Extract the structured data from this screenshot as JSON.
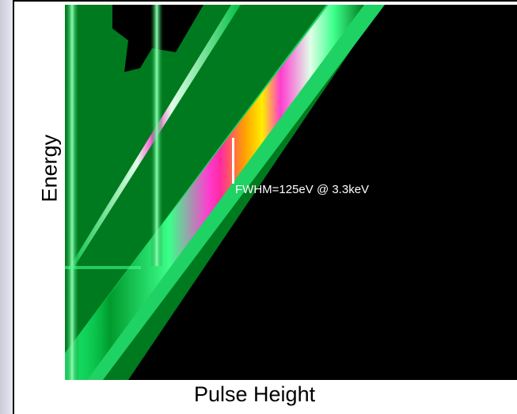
{
  "chart_data": {
    "type": "heatmap",
    "xlabel": "Pulse Height",
    "ylabel": "Energy",
    "annotation": "FWHM=125eV @ 3.3keV",
    "colors": {
      "background": "#000000",
      "low": "#007a1e",
      "mid": "#3cff8a",
      "edge": "#e0ffe8",
      "peak_outer": "#ff3cd0",
      "peak_inner": "#ffa000",
      "core": "#ffee00",
      "annotation": "#ffffff"
    }
  }
}
